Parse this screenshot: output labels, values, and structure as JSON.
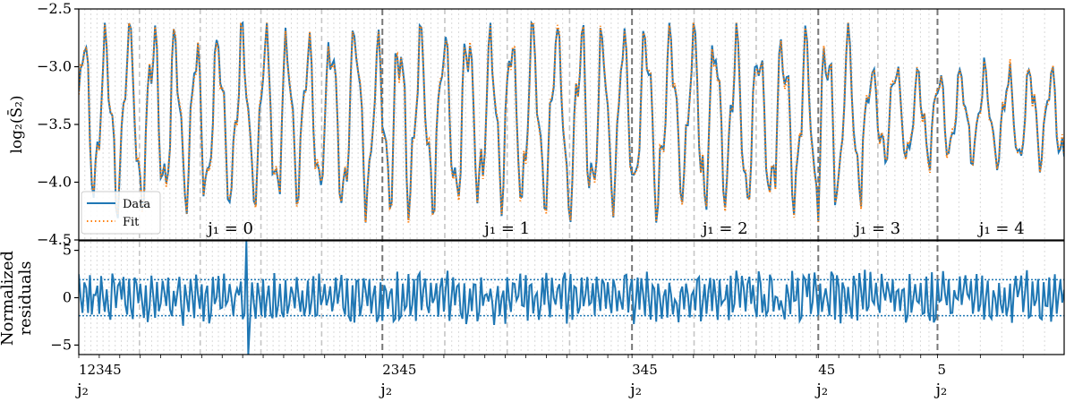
{
  "chart_data": [
    {
      "type": "line",
      "panel": "top",
      "ylabel": "log₂(S̄₂)",
      "ylim": [
        -4.5,
        -2.5
      ],
      "yticks": [
        "−2.5",
        "−3.0",
        "−3.5",
        "−4.0",
        "−4.5"
      ],
      "series": [
        {
          "name": "Data",
          "color": "#1f77b4",
          "style": "solid"
        },
        {
          "name": "Fit",
          "color": "#ff7f0e",
          "style": "dotted"
        }
      ],
      "legend": "lower-left",
      "n_points": 530,
      "y_range_observed": [
        -4.35,
        -2.62
      ],
      "group_labels": [
        "j₁ = 0",
        "j₁ = 1",
        "j₁ = 2",
        "j₁ = 3",
        "j₁ = 4"
      ],
      "group_boundaries": [
        0,
        163,
        297,
        397,
        461,
        530
      ]
    },
    {
      "type": "line",
      "panel": "bottom",
      "ylabel": "Normalized residuals",
      "ylim": [
        -6,
        6
      ],
      "yticks": [
        "5",
        "0",
        "−5"
      ],
      "reference_lines": [
        1.9,
        -1.9
      ],
      "series": [
        {
          "name": "",
          "color": "#1f77b4",
          "style": "solid"
        }
      ],
      "y_range_observed": [
        -6,
        6
      ]
    }
  ],
  "xaxis": {
    "label": "j₂",
    "tick_groups": [
      "12345",
      "2345",
      "345",
      "45",
      "5"
    ]
  },
  "colors": {
    "data": "#1f77b4",
    "fit": "#ff7f0e",
    "dashed_dark": "#777777",
    "dashed_mid": "#c6c6c6",
    "dotted_light": "#d6d6d6"
  }
}
